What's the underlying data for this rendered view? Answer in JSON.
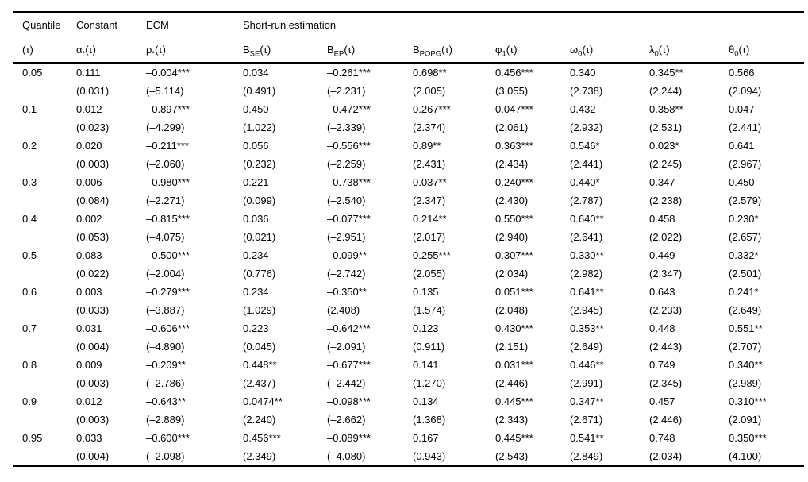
{
  "table": {
    "header_row1": [
      {
        "text": "Quantile",
        "colspan": 1
      },
      {
        "text": "Constant",
        "colspan": 1
      },
      {
        "text": "ECM",
        "colspan": 1
      },
      {
        "text": "Short-run estimation",
        "colspan": 7
      }
    ],
    "header_row2": [
      {
        "base": "(τ)",
        "sub": "",
        "suffix": ""
      },
      {
        "base": "α",
        "sub": "*",
        "suffix": "(τ)"
      },
      {
        "base": "ρ",
        "sub": "*",
        "suffix": "(τ)"
      },
      {
        "base": "B",
        "sub": "SE",
        "suffix": "(τ)"
      },
      {
        "base": "B",
        "sub": "EP",
        "suffix": "(τ)"
      },
      {
        "base": "B",
        "sub": "POPG",
        "suffix": "(τ)"
      },
      {
        "base": "φ",
        "sub": "1",
        "suffix": "(τ)"
      },
      {
        "base": "ω",
        "sub": "0",
        "suffix": "(τ)"
      },
      {
        "base": "λ",
        "sub": "0",
        "suffix": "(τ)"
      },
      {
        "base": "θ",
        "sub": "0",
        "suffix": "(τ)"
      }
    ],
    "rows": [
      {
        "quantile": "0.05",
        "coef": [
          "0.111",
          "–0.004***",
          "0.034",
          "–0.261***",
          "0.698**",
          "0.456***",
          "0.340",
          "0.345**",
          "0.566"
        ],
        "tstat": [
          "(0.031)",
          "(–5.114)",
          "(0.491)",
          "(–2.231)",
          "(2.005)",
          "(3.055)",
          "(2.738)",
          "(2.244)",
          "(2.094)"
        ]
      },
      {
        "quantile": "0.1",
        "coef": [
          "0.012",
          "–0.897***",
          "0.450",
          "–0.472***",
          "0.267***",
          "0.047***",
          "0.432",
          "0.358**",
          "0.047"
        ],
        "tstat": [
          "(0.023)",
          "(–4.299)",
          "(1.022)",
          "(–2.339)",
          "(2.374)",
          "(2.061)",
          "(2.932)",
          "(2.531)",
          "(2.441)"
        ]
      },
      {
        "quantile": "0.2",
        "coef": [
          "0.020",
          "–0.211***",
          "0.056",
          "–0.556***",
          "0.89**",
          "0.363***",
          "0.546*",
          "0.023*",
          "0.641"
        ],
        "tstat": [
          "(0.003)",
          "(–2.060)",
          "(0.232)",
          "(–2.259)",
          "(2.431)",
          "(2.434)",
          "(2.441)",
          "(2.245)",
          "(2.967)"
        ]
      },
      {
        "quantile": "0.3",
        "coef": [
          "0.006",
          "–0.980***",
          "0.221",
          "–0.738***",
          "0.037**",
          "0.240***",
          "0.440*",
          "0.347",
          "0.450"
        ],
        "tstat": [
          "(0.084)",
          "(–2.271)",
          "(0.099)",
          "(–2.540)",
          "(2.347)",
          "(2.430)",
          "(2.787)",
          "(2.238)",
          "(2.579)"
        ]
      },
      {
        "quantile": "0.4",
        "coef": [
          "0.002",
          "–0.815***",
          "0.036",
          "–0.077***",
          "0.214**",
          "0.550***",
          "0.640**",
          "0.458",
          "0.230*"
        ],
        "tstat": [
          "(0.053)",
          "(–4.075)",
          "(0.021)",
          "(–2.951)",
          "(2.017)",
          "(2.940)",
          "(2.641)",
          "(2.022)",
          "(2.657)"
        ]
      },
      {
        "quantile": "0.5",
        "coef": [
          "0.083",
          "–0.500***",
          "0.234",
          "–0.099**",
          "0.255***",
          "0.307***",
          "0.330**",
          "0.449",
          "0.332*"
        ],
        "tstat": [
          "(0.022)",
          "(–2.004)",
          "(0.776)",
          "(–2.742)",
          "(2.055)",
          "(2.034)",
          "(2.982)",
          "(2.347)",
          "(2.501)"
        ]
      },
      {
        "quantile": "0.6",
        "coef": [
          "0.003",
          "–0.279***",
          "0.234",
          "–0.350**",
          "0.135",
          "0.051***",
          "0.641**",
          "0.643",
          "0.241*"
        ],
        "tstat": [
          "(0.033)",
          "(–3.887)",
          "(1.029)",
          "(2.408)",
          "(1.574)",
          "(2.048)",
          "(2.945)",
          "(2.233)",
          "(2.649)"
        ]
      },
      {
        "quantile": "0.7",
        "coef": [
          "0.031",
          "–0.606***",
          "0.223",
          "–0.642***",
          "0.123",
          "0.430***",
          "0.353**",
          "0.448",
          "0.551**"
        ],
        "tstat": [
          "(0.004)",
          "(–4.890)",
          "(0.045)",
          "(–2.091)",
          "(0.911)",
          "(2.151)",
          "(2.649)",
          "(2.443)",
          "(2.707)"
        ]
      },
      {
        "quantile": "0.8",
        "coef": [
          "0.009",
          "–0.209**",
          "0.448**",
          "–0.677***",
          "0.141",
          "0.031***",
          "0.446**",
          "0.749",
          "0.340**"
        ],
        "tstat": [
          "(0.003)",
          "(–2.786)",
          "(2.437)",
          "(–2.442)",
          "(1.270)",
          "(2.446)",
          "(2.991)",
          "(2.345)",
          "(2.989)"
        ]
      },
      {
        "quantile": "0.9",
        "coef": [
          "0.012",
          "–0.643**",
          "0.0474**",
          "–0.098***",
          "0.134",
          "0.445***",
          "0.347**",
          "0.457",
          "0.310***"
        ],
        "tstat": [
          "(0.003)",
          "(–2.889)",
          "(2.240)",
          "(–2.662)",
          "(1.368)",
          "(2.343)",
          "(2.671)",
          "(2.446)",
          "(2.091)"
        ]
      },
      {
        "quantile": "0.95",
        "coef": [
          "0.033",
          "–0.600***",
          "0.456***",
          "–0.089***",
          "0.167",
          "0.445***",
          "0.541**",
          "0.748",
          "0.350***"
        ],
        "tstat": [
          "(0.004)",
          "(–2.098)",
          "(2.349)",
          "(–4.080)",
          "(0.943)",
          "(2.543)",
          "(2.849)",
          "(2.034)",
          "(4.100)"
        ]
      }
    ]
  }
}
